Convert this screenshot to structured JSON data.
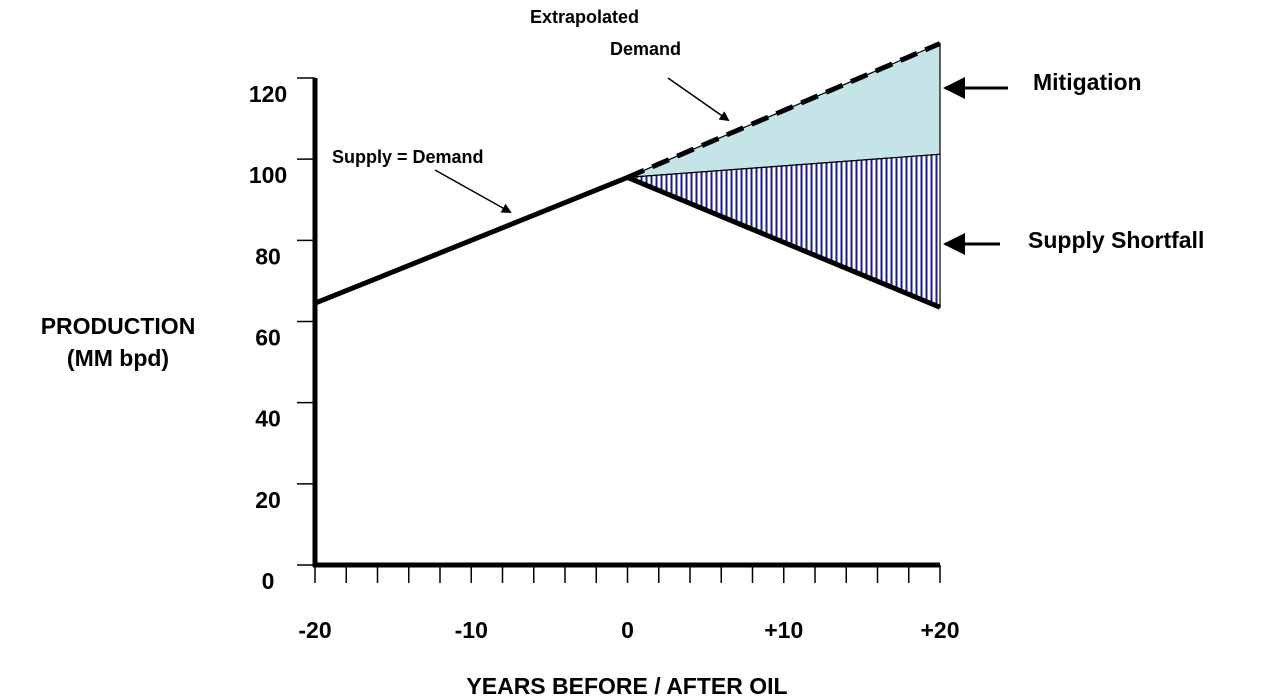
{
  "chart_data": {
    "type": "line",
    "xlabel": "YEARS BEFORE / AFTER OIL",
    "ylabel": [
      "PRODUCTION",
      "(MM bpd)"
    ],
    "xlim": [
      -20,
      20
    ],
    "ylim": [
      0,
      120
    ],
    "xticks": [
      -20,
      -10,
      0,
      {
        "value": 10,
        "label": "+10"
      },
      {
        "value": 20,
        "label": "+20"
      }
    ],
    "xminorticks": [
      -20,
      -18,
      -16,
      -14,
      -12,
      -10,
      -8,
      -6,
      -4,
      -2,
      0,
      2,
      4,
      6,
      8,
      10,
      12,
      14,
      16,
      18,
      20
    ],
    "yticks": [
      0,
      20,
      40,
      60,
      80,
      100,
      120
    ],
    "series": [
      {
        "name": "Supply",
        "color": "#000000",
        "x": [
          -20,
          0,
          20
        ],
        "values": [
          64.5,
          95.5,
          63.5
        ]
      },
      {
        "name": "Extrapolated Demand",
        "color": "#000000",
        "dashed": true,
        "x": [
          0,
          20
        ],
        "values": [
          95.5,
          128.5
        ]
      }
    ],
    "areas": [
      {
        "name": "Mitigation",
        "color": "#c5e4e8",
        "x": [
          0,
          20
        ],
        "upper": [
          95.5,
          128.5
        ],
        "lower": [
          95.5,
          101.2
        ]
      },
      {
        "name": "Supply Shortfall",
        "color": "#1c1c8c",
        "hatch": true,
        "x": [
          0,
          20
        ],
        "upper": [
          95.5,
          101.2
        ],
        "lower": [
          95.5,
          63.5
        ]
      }
    ],
    "annotations": [
      "Supply = Demand",
      "Extrapolated",
      "Demand",
      "Mitigation",
      "Supply Shortfall"
    ]
  }
}
